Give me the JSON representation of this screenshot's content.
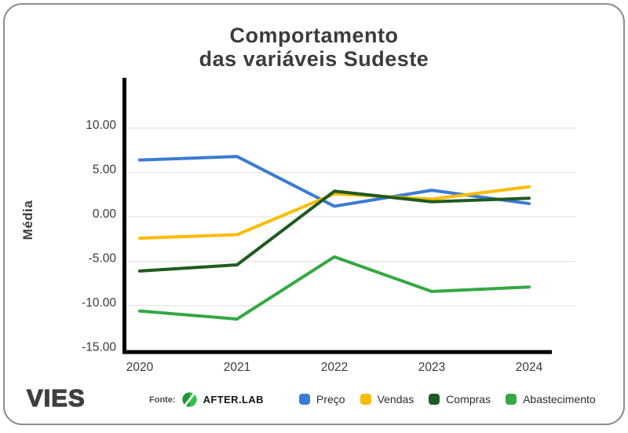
{
  "card": {
    "title_line1": "Comportamento",
    "title_line2": "das variáveis Sudeste"
  },
  "footer": {
    "brand": "VIES",
    "fonte_label": "Fonte:",
    "source_name": "AFTER.LAB"
  },
  "colors": {
    "title": "#3c3c3c",
    "axis": "#000000",
    "gridline": "#e3e3e3",
    "tick_label": "#3a3a3a",
    "card_border": "#8d8d8d",
    "source_logo_dark_green": "#1c9636",
    "source_logo_light_green": "#2ec24a"
  },
  "chart_data": {
    "type": "line",
    "title": "Comportamento das variáveis Sudeste",
    "xlabel": "",
    "ylabel": "Média",
    "categories": [
      "2020",
      "2021",
      "2022",
      "2023",
      "2024"
    ],
    "series": [
      {
        "name": "Preço",
        "color": "#3A7BD5",
        "values": [
          6.4,
          6.8,
          1.2,
          3.0,
          1.5
        ]
      },
      {
        "name": "Vendas",
        "color": "#FBBC04",
        "values": [
          -2.4,
          -2.0,
          2.6,
          2.0,
          3.4
        ]
      },
      {
        "name": "Compras",
        "color": "#1E5B20",
        "values": [
          -6.1,
          -5.4,
          2.9,
          1.7,
          2.1
        ]
      },
      {
        "name": "Abastecimento",
        "color": "#34A843",
        "values": [
          -10.6,
          -11.5,
          -4.5,
          -8.4,
          -7.9
        ]
      }
    ],
    "y_ticks": [
      10,
      5,
      0,
      -5,
      -10,
      -15
    ],
    "y_tick_labels": [
      "10.00",
      "5.00",
      "0.00",
      "-5.00",
      "-10.00",
      "-15.00"
    ],
    "ylim": [
      -15.5,
      15.6
    ],
    "grid": true,
    "legend_position": "bottom"
  }
}
